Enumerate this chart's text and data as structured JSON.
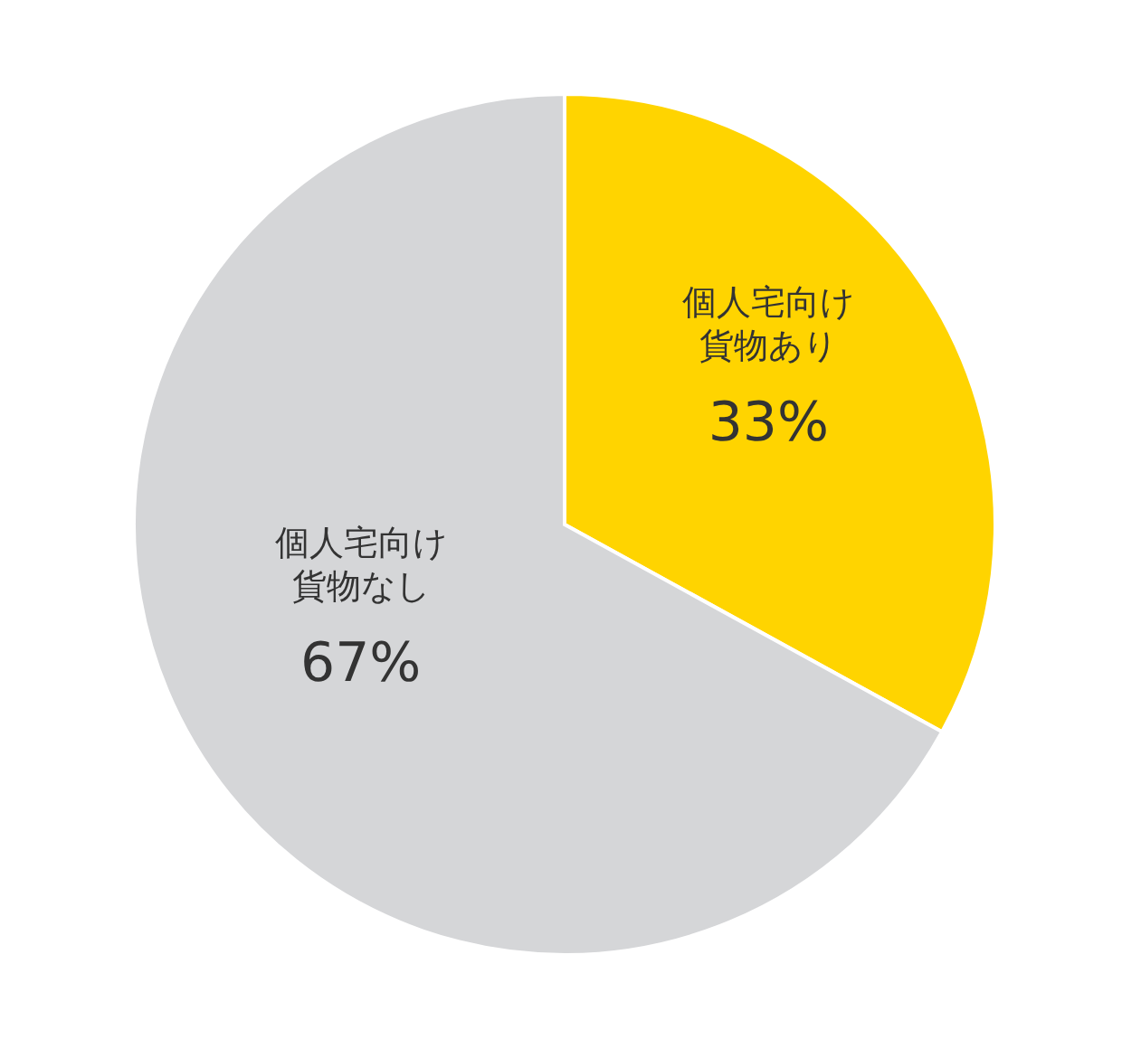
{
  "chart_data": {
    "type": "pie",
    "categories": [
      "個人宅向け貨物あり",
      "個人宅向け貨物なし"
    ],
    "values": [
      33,
      67
    ],
    "colors": [
      "#ffd400",
      "#d5d6d8"
    ],
    "value_labels": [
      "33%",
      "67%"
    ]
  }
}
